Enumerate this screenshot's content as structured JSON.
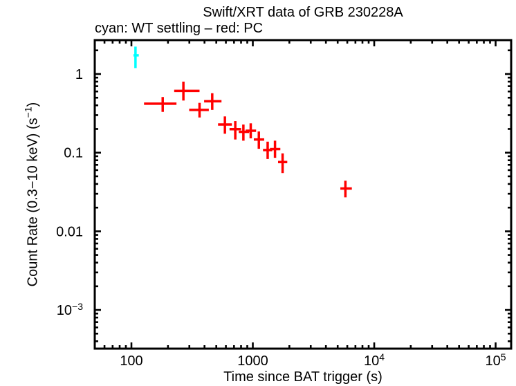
{
  "page": {
    "background": "#ffffff"
  },
  "colors": {
    "frame": "#000000",
    "text": "#000000",
    "wt_settling": "#00ffff",
    "pc": "#ff0000",
    "background": "#ffffff"
  },
  "chart_data": {
    "type": "scatter",
    "title": "Swift/XRT data of GRB 230228A",
    "subtitle": "cyan: WT settling – red: PC",
    "xlabel": "Time since BAT trigger (s)",
    "ylabel_rich": [
      [
        "t",
        "Count Rate (0.3−10 keV) (s"
      ],
      [
        "sup",
        "−1"
      ],
      [
        "t",
        ")"
      ]
    ],
    "x_scale": "log",
    "y_scale": "log",
    "grid": false,
    "legend": false,
    "axes": {
      "x": {
        "log_min": 1.698,
        "log_max": 5.128,
        "min": 50,
        "max": 134000
      },
      "y": {
        "log_min": -3.492,
        "log_max": 0.431,
        "min": 0.00032,
        "max": 2.7
      }
    },
    "x_ticks": [
      {
        "value": 100,
        "rich": [
          [
            "t",
            "100"
          ]
        ]
      },
      {
        "value": 1000,
        "rich": [
          [
            "t",
            "1000"
          ]
        ]
      },
      {
        "value": 10000,
        "rich": [
          [
            "t",
            "10"
          ],
          [
            "sup",
            "4"
          ]
        ]
      },
      {
        "value": 100000,
        "rich": [
          [
            "t",
            "10"
          ],
          [
            "sup",
            "5"
          ]
        ]
      }
    ],
    "y_ticks": [
      {
        "value": 1,
        "rich": [
          [
            "t",
            "1"
          ]
        ]
      },
      {
        "value": 0.1,
        "rich": [
          [
            "t",
            "0.1"
          ]
        ]
      },
      {
        "value": 0.01,
        "rich": [
          [
            "t",
            "0.01"
          ]
        ]
      },
      {
        "value": 0.001,
        "rich": [
          [
            "t",
            "10"
          ],
          [
            "sup",
            "−3"
          ]
        ]
      }
    ],
    "series": [
      {
        "name": "WT settling",
        "mode": "WT",
        "color": "#00ffff",
        "marker": "cross-with-error-bars",
        "points": [
          {
            "t": 108,
            "t_lo": 104,
            "t_hi": 115,
            "rate": 1.73,
            "rate_lo": 1.19,
            "rate_hi": 2.23
          }
        ]
      },
      {
        "name": "PC",
        "mode": "PC",
        "color": "#ff0000",
        "marker": "cross-with-error-bars",
        "points": [
          {
            "t": 181,
            "t_lo": 127,
            "t_hi": 235,
            "rate": 0.42,
            "rate_lo": 0.33,
            "rate_hi": 0.51
          },
          {
            "t": 268,
            "t_lo": 225,
            "t_hi": 364,
            "rate": 0.61,
            "rate_lo": 0.46,
            "rate_hi": 0.8
          },
          {
            "t": 364,
            "t_lo": 299,
            "t_hi": 434,
            "rate": 0.35,
            "rate_lo": 0.28,
            "rate_hi": 0.43
          },
          {
            "t": 463,
            "t_lo": 397,
            "t_hi": 552,
            "rate": 0.45,
            "rate_lo": 0.35,
            "rate_hi": 0.57
          },
          {
            "t": 589,
            "t_lo": 517,
            "t_hi": 672,
            "rate": 0.228,
            "rate_lo": 0.174,
            "rate_hi": 0.289
          },
          {
            "t": 717,
            "t_lo": 643,
            "t_hi": 800,
            "rate": 0.199,
            "rate_lo": 0.147,
            "rate_hi": 0.252
          },
          {
            "t": 836,
            "t_lo": 766,
            "t_hi": 933,
            "rate": 0.184,
            "rate_lo": 0.142,
            "rate_hi": 0.228
          },
          {
            "t": 961,
            "t_lo": 873,
            "t_hi": 1064,
            "rate": 0.19,
            "rate_lo": 0.152,
            "rate_hi": 0.236
          },
          {
            "t": 1121,
            "t_lo": 1019,
            "t_hi": 1241,
            "rate": 0.147,
            "rate_lo": 0.112,
            "rate_hi": 0.186
          },
          {
            "t": 1325,
            "t_lo": 1213,
            "t_hi": 1445,
            "rate": 0.108,
            "rate_lo": 0.083,
            "rate_hi": 0.138
          },
          {
            "t": 1523,
            "t_lo": 1384,
            "t_hi": 1685,
            "rate": 0.111,
            "rate_lo": 0.086,
            "rate_hi": 0.142
          },
          {
            "t": 1759,
            "t_lo": 1614,
            "t_hi": 1922,
            "rate": 0.076,
            "rate_lo": 0.055,
            "rate_hi": 0.098
          },
          {
            "t": 5789,
            "t_lo": 5260,
            "t_hi": 6543,
            "rate": 0.035,
            "rate_lo": 0.027,
            "rate_hi": 0.044
          }
        ]
      }
    ]
  }
}
